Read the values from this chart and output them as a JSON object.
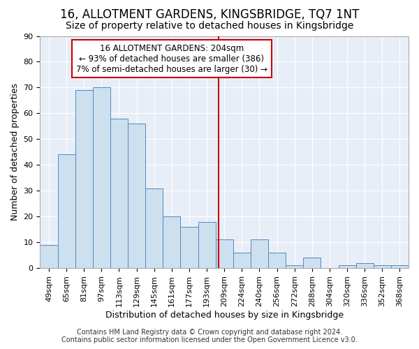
{
  "title": "16, ALLOTMENT GARDENS, KINGSBRIDGE, TQ7 1NT",
  "subtitle": "Size of property relative to detached houses in Kingsbridge",
  "xlabel": "Distribution of detached houses by size in Kingsbridge",
  "ylabel": "Number of detached properties",
  "categories": [
    "49sqm",
    "65sqm",
    "81sqm",
    "97sqm",
    "113sqm",
    "129sqm",
    "145sqm",
    "161sqm",
    "177sqm",
    "193sqm",
    "209sqm",
    "224sqm",
    "240sqm",
    "256sqm",
    "272sqm",
    "288sqm",
    "304sqm",
    "320sqm",
    "336sqm",
    "352sqm",
    "368sqm"
  ],
  "values": [
    9,
    44,
    69,
    70,
    58,
    56,
    31,
    20,
    16,
    18,
    11,
    6,
    11,
    6,
    1,
    4,
    0,
    1,
    2,
    1,
    1
  ],
  "bar_color": "#cce0f0",
  "bar_edgecolor": "#5588bb",
  "vline_x_index": 9.69,
  "vline_color": "#cc0000",
  "ylim": [
    0,
    90
  ],
  "yticks": [
    0,
    10,
    20,
    30,
    40,
    50,
    60,
    70,
    80,
    90
  ],
  "annotation_title": "16 ALLOTMENT GARDENS: 204sqm",
  "annotation_line1": "← 93% of detached houses are smaller (386)",
  "annotation_line2": "7% of semi-detached houses are larger (30) →",
  "annotation_box_color": "#ffffff",
  "annotation_box_edgecolor": "#cc0000",
  "footer": "Contains HM Land Registry data © Crown copyright and database right 2024.\nContains public sector information licensed under the Open Government Licence v3.0.",
  "background_color": "#ffffff",
  "plot_background_color": "#e8eef8",
  "grid_color": "#ffffff",
  "title_fontsize": 12,
  "subtitle_fontsize": 10,
  "axis_label_fontsize": 9,
  "tick_fontsize": 8,
  "annotation_fontsize": 8.5,
  "footer_fontsize": 7
}
